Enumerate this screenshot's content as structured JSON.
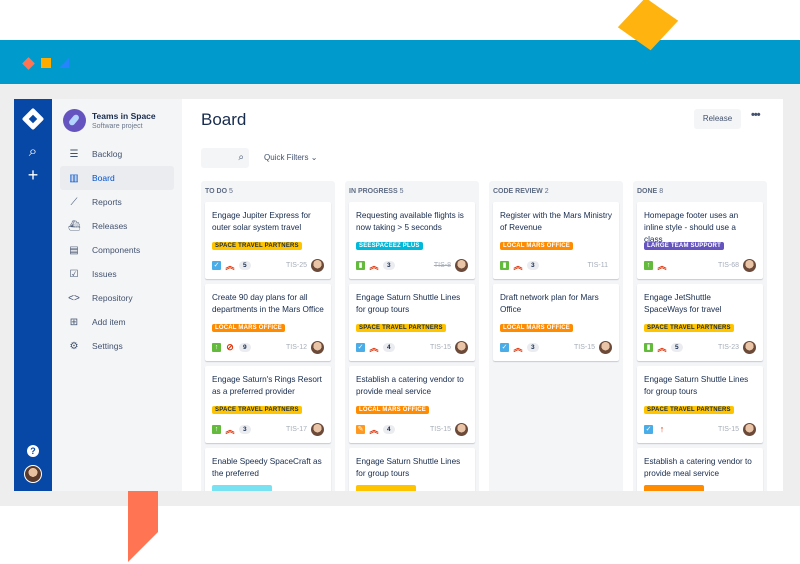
{
  "colors": {
    "band": "#009BCC",
    "global_nav": "#0747A6",
    "accent": "#0052CC"
  },
  "global_nav": {
    "icons": [
      "jira-logo-icon",
      "search-icon",
      "plus-icon",
      "help-icon",
      "avatar"
    ]
  },
  "project": {
    "name": "Teams in Space",
    "type": "Software project"
  },
  "sidebar": {
    "items": [
      {
        "label": "Backlog",
        "icon": "backlog-icon"
      },
      {
        "label": "Board",
        "icon": "board-icon",
        "active": true
      },
      {
        "label": "Reports",
        "icon": "reports-icon"
      },
      {
        "label": "Releases",
        "icon": "releases-icon"
      },
      {
        "label": "Components",
        "icon": "components-icon"
      },
      {
        "label": "Issues",
        "icon": "issues-icon"
      },
      {
        "label": "Repository",
        "icon": "code-icon"
      },
      {
        "label": "Add item",
        "icon": "add-item-icon"
      },
      {
        "label": "Settings",
        "icon": "gear-icon"
      }
    ]
  },
  "header": {
    "title": "Board",
    "release_label": "Release",
    "more_label": "•••",
    "quick_filters": "Quick Filters"
  },
  "columns": [
    {
      "name": "TO DO",
      "count": "5",
      "cards": [
        {
          "title": "Engage Jupiter Express for outer solar system travel",
          "label": "SPACE TRAVEL PARTNERS",
          "label_color": "#FFC400",
          "type": "task",
          "priority": "highest",
          "estimate": "5",
          "key": "TIS-25"
        },
        {
          "title": "Create 90 day plans for all departments in the Mars Office",
          "label": "LOCAL MARS OFFICE",
          "label_color": "#FF8B00",
          "type": "improvement",
          "priority": "blocker",
          "estimate": "9",
          "key": "TIS-12"
        },
        {
          "title": "Engage Saturn's Rings Resort as a preferred provider",
          "label": "SPACE TRAVEL PARTNERS",
          "label_color": "#FFC400",
          "type": "improvement",
          "priority": "highest",
          "estimate": "3",
          "key": "TIS-17"
        },
        {
          "title": "Enable Speedy SpaceCraft as the preferred",
          "label": "",
          "label_color": "#79E2F2"
        }
      ]
    },
    {
      "name": "IN PROGRESS",
      "count": "5",
      "cards": [
        {
          "title": "Requesting available flights is now taking > 5 seconds",
          "label": "SEESPACEEZ PLUS",
          "label_color": "#00B8D9",
          "type": "story",
          "priority": "highest",
          "estimate": "3",
          "key": "TIS-8",
          "done": true
        },
        {
          "title": "Engage Saturn Shuttle Lines for group tours",
          "label": "SPACE TRAVEL PARTNERS",
          "label_color": "#FFC400",
          "type": "task",
          "priority": "highest",
          "estimate": "4",
          "key": "TIS-15"
        },
        {
          "title": "Establish a catering vendor to provide meal service",
          "label": "LOCAL MARS OFFICE",
          "label_color": "#FF8B00",
          "type": "subtask",
          "priority": "highest",
          "estimate": "4",
          "key": "TIS-15"
        },
        {
          "title": "Engage Saturn Shuttle Lines for group tours",
          "label": "",
          "label_color": "#FFC400"
        }
      ]
    },
    {
      "name": "CODE REVIEW",
      "count": "2",
      "cards": [
        {
          "title": "Register with the Mars Ministry of Revenue",
          "label": "LOCAL MARS OFFICE",
          "label_color": "#FF8B00",
          "type": "story",
          "priority": "highest",
          "estimate": "3",
          "key": "TIS-11",
          "no_avatar": true
        },
        {
          "title": "Draft network plan for Mars Office",
          "label": "LOCAL MARS OFFICE",
          "label_color": "#FF8B00",
          "type": "task",
          "priority": "highest",
          "estimate": "3",
          "key": "TIS-15"
        }
      ]
    },
    {
      "name": "DONE",
      "count": "8",
      "cards": [
        {
          "title": "Homepage footer uses an inline style - should use a class",
          "label": "LARGE TEAM SUPPORT",
          "label_color": "#6554C0",
          "type": "improvement",
          "priority": "highest",
          "key": "TIS-68"
        },
        {
          "title": "Engage JetShuttle SpaceWays for travel",
          "label": "SPACE TRAVEL PARTNERS",
          "label_color": "#FFC400",
          "type": "story",
          "priority": "highest",
          "estimate": "5",
          "key": "TIS-23"
        },
        {
          "title": "Engage Saturn Shuttle Lines for group tours",
          "label": "SPACE TRAVEL PARTNERS",
          "label_color": "#FFC400",
          "type": "task",
          "priority": "high",
          "key": "TIS-15"
        },
        {
          "title": "Establish a catering vendor to provide meal service",
          "label": "",
          "label_color": "#FF8B00"
        }
      ]
    }
  ]
}
